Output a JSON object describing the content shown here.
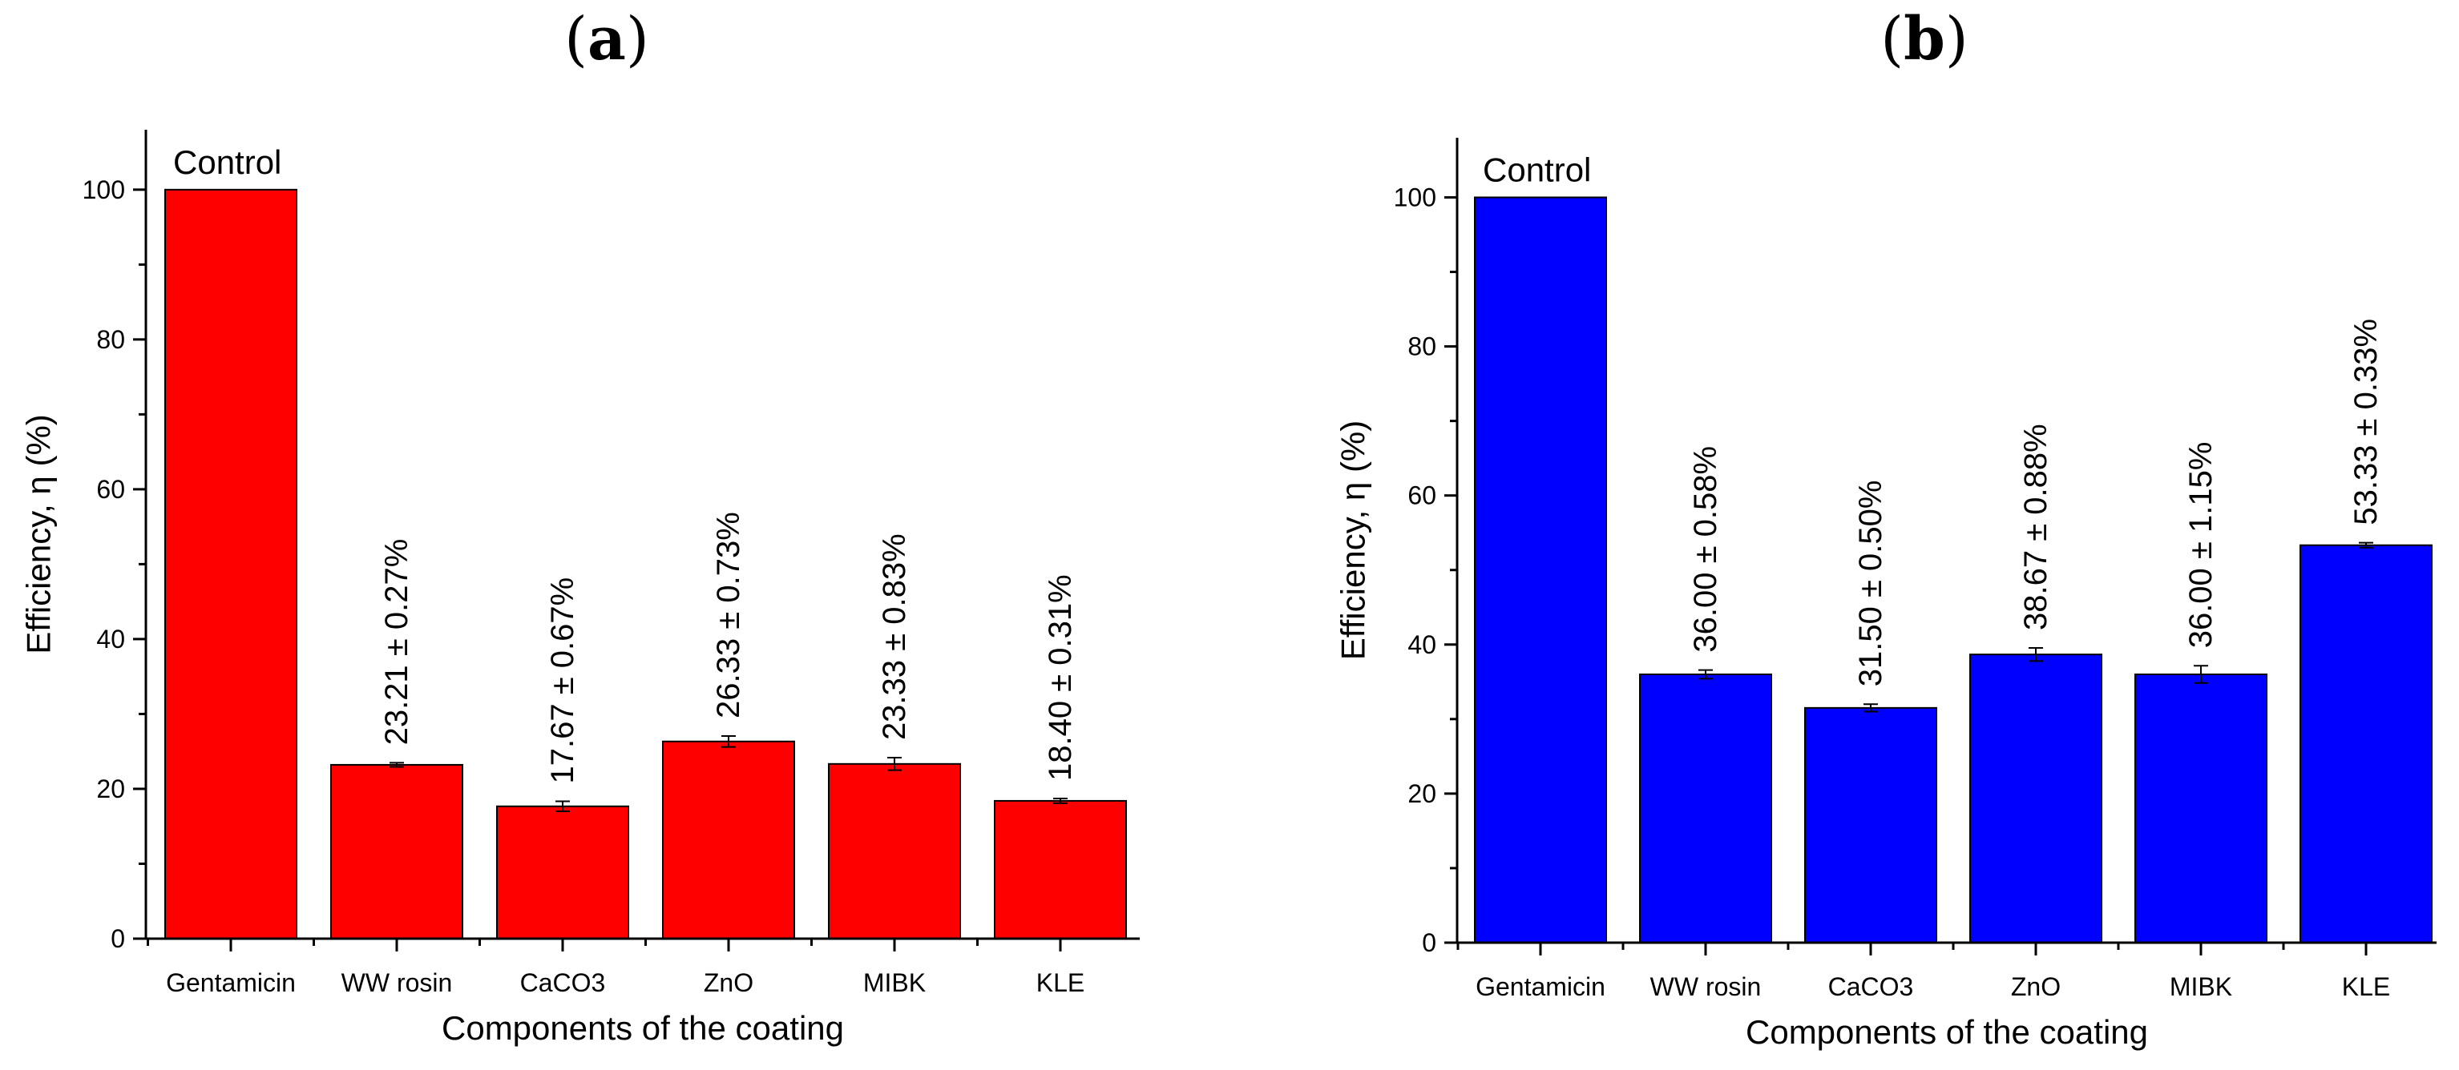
{
  "chart_data": [
    {
      "type": "bar",
      "panel_label": "a",
      "categories": [
        "Gentamicin",
        "WW rosin",
        "CaCO3",
        "ZnO",
        "MIBK",
        "KLE"
      ],
      "values": [
        100,
        23.21,
        17.67,
        26.33,
        23.33,
        18.4
      ],
      "errors": [
        0,
        0.27,
        0.67,
        0.73,
        0.83,
        0.31
      ],
      "data_labels": [
        "",
        "23.21 ± 0.27%",
        "17.67 ± 0.67%",
        "26.33 ± 0.73%",
        "23.33 ± 0.83%",
        "18.40 ± 0.31%"
      ],
      "annotation": "Control",
      "color": "#ff0000",
      "xlabel": "Components of the coating",
      "ylabel": "Efficiency, η (%)",
      "ylim": [
        0,
        108
      ],
      "yticks": [
        0,
        20,
        40,
        60,
        80,
        100
      ]
    },
    {
      "type": "bar",
      "panel_label": "b",
      "categories": [
        "Gentamicin",
        "WW rosin",
        "CaCO3",
        "ZnO",
        "MIBK",
        "KLE"
      ],
      "values": [
        100,
        36.0,
        31.5,
        38.67,
        36.0,
        53.33
      ],
      "errors": [
        0,
        0.58,
        0.5,
        0.88,
        1.15,
        0.33
      ],
      "data_labels": [
        "",
        "36.00 ± 0.58%",
        "31.50 ± 0.50%",
        "38.67 ± 0.88%",
        "36.00 ± 1.15%",
        "53.33 ± 0.33%"
      ],
      "annotation": "Control",
      "color": "#0000ff",
      "xlabel": "Components of the coating",
      "ylabel": "Efficiency, η (%)",
      "ylim": [
        0,
        108
      ],
      "yticks": [
        0,
        20,
        40,
        60,
        80,
        100
      ]
    }
  ]
}
